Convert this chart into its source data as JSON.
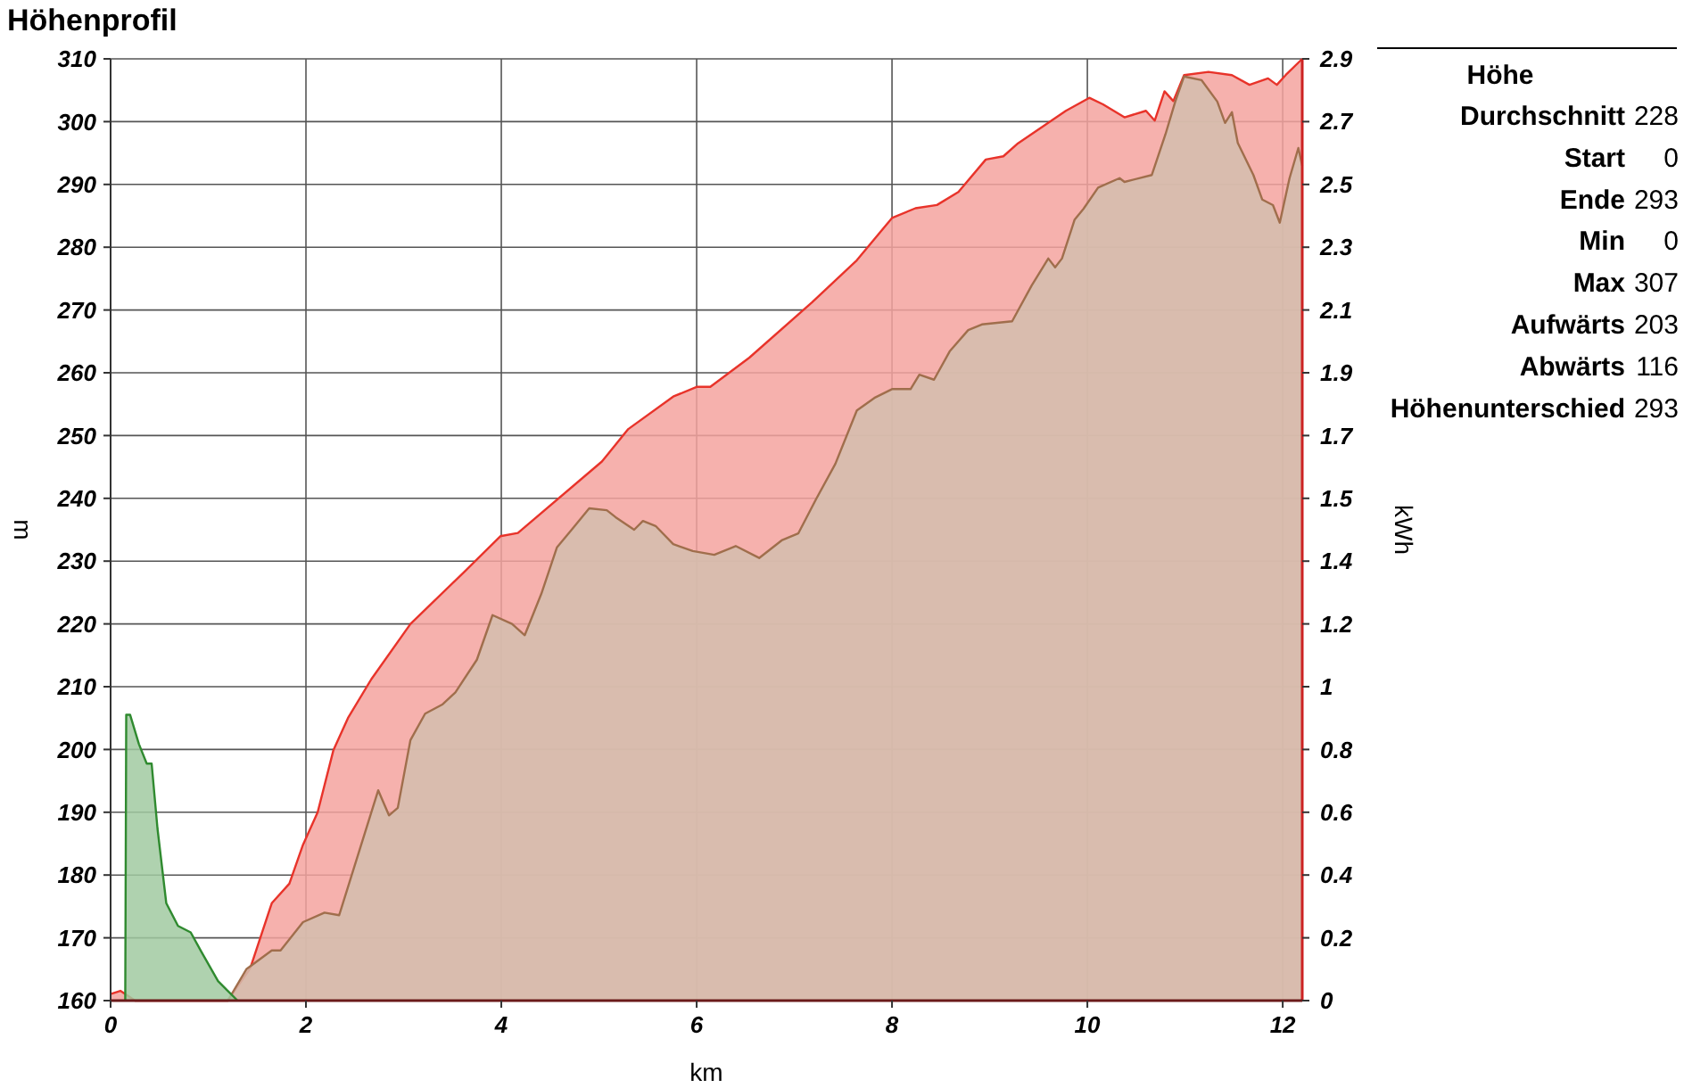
{
  "chart_data": {
    "type": "area",
    "title": "Höhenprofil",
    "xlabel": "km",
    "ylabel": "m",
    "y2label": "kWh",
    "xlim": [
      0,
      12.2
    ],
    "xticks": [
      0,
      2,
      4,
      6,
      8,
      10,
      12
    ],
    "ylim": [
      160,
      310
    ],
    "yticks": [
      160,
      170,
      180,
      190,
      200,
      210,
      220,
      230,
      240,
      250,
      260,
      270,
      280,
      290,
      300,
      310
    ],
    "y2lim": [
      0,
      2.9
    ],
    "y2ticks": [
      0,
      {
        "value": 0.1933,
        "label": "0.2"
      },
      {
        "value": 0.3867,
        "label": "0.4"
      },
      {
        "value": 0.58,
        "label": "0.6"
      },
      {
        "value": 0.7733,
        "label": "0.8"
      },
      {
        "value": 0.9667,
        "label": "1"
      },
      {
        "value": 1.16,
        "label": "1.2"
      },
      {
        "value": 1.3533,
        "label": "1.4"
      },
      {
        "value": 1.5467,
        "label": "1.5"
      },
      {
        "value": 1.74,
        "label": "1.7"
      },
      {
        "value": 1.9333,
        "label": "1.9"
      },
      {
        "value": 2.1267,
        "label": "2.1"
      },
      {
        "value": 2.32,
        "label": "2.3"
      },
      {
        "value": 2.5133,
        "label": "2.5"
      },
      {
        "value": 2.7067,
        "label": "2.7"
      },
      2.9
    ],
    "grid": true,
    "series": [
      {
        "color": "#e8332a",
        "axis": "y2",
        "x": [
          0,
          0.1,
          0.2,
          0.25,
          1.2,
          1.43,
          1.65,
          1.83,
          1.97,
          2.12,
          2.28,
          2.43,
          2.67,
          3.07,
          3.62,
          3.99,
          4.17,
          5.03,
          5.3,
          5.76,
          6.0,
          6.14,
          6.54,
          7.18,
          7.64,
          8.0,
          8.24,
          8.46,
          8.68,
          8.96,
          9.14,
          9.29,
          9.78,
          10.02,
          10.16,
          10.38,
          10.6,
          10.69,
          10.79,
          10.88,
          10.99,
          11.24,
          11.48,
          11.66,
          11.85,
          11.94,
          12.03,
          12.2
        ],
        "values": [
          0.02,
          0.03,
          0.01,
          0,
          0,
          0.1,
          0.3,
          0.36,
          0.48,
          0.58,
          0.77,
          0.87,
          0.99,
          1.16,
          1.32,
          1.43,
          1.44,
          1.66,
          1.76,
          1.86,
          1.89,
          1.89,
          1.98,
          2.15,
          2.28,
          2.41,
          2.44,
          2.45,
          2.49,
          2.59,
          2.6,
          2.64,
          2.74,
          2.78,
          2.76,
          2.72,
          2.74,
          2.71,
          2.8,
          2.77,
          2.85,
          2.86,
          2.85,
          2.82,
          2.84,
          2.82,
          2.85,
          2.9
        ]
      },
      {
        "color": "#a06e4c",
        "x": [
          1.2,
          1.39,
          1.65,
          1.74,
          1.97,
          2.19,
          2.34,
          2.74,
          2.85,
          2.94,
          3.07,
          3.22,
          3.4,
          3.53,
          3.75,
          3.91,
          4.11,
          4.24,
          4.41,
          4.57,
          4.72,
          4.9,
          5.08,
          5.17,
          5.36,
          5.45,
          5.58,
          5.76,
          5.96,
          6.18,
          6.4,
          6.64,
          6.87,
          7.04,
          7.22,
          7.42,
          7.64,
          7.82,
          8.0,
          8.19,
          8.28,
          8.43,
          8.59,
          8.78,
          8.92,
          9.23,
          9.43,
          9.6,
          9.67,
          9.74,
          9.87,
          9.96,
          10.11,
          10.33,
          10.38,
          10.66,
          10.8,
          10.9,
          10.99,
          11.17,
          11.33,
          11.41,
          11.48,
          11.54,
          11.7,
          11.79,
          11.9,
          11.97,
          12.07,
          12.16,
          12.2
        ],
        "values": [
          160,
          165,
          168,
          168,
          172.5,
          174,
          173.6,
          193.5,
          189.5,
          190.7,
          201.5,
          205.7,
          207.2,
          209.1,
          214.3,
          221.4,
          220,
          218.2,
          224.8,
          232.2,
          235,
          238.4,
          238.1,
          237,
          235,
          236.4,
          235.6,
          232.7,
          231.6,
          231,
          232.4,
          230.5,
          233.3,
          234.4,
          239.8,
          245.5,
          254,
          256,
          257.4,
          257.4,
          259.7,
          258.9,
          263.4,
          266.8,
          267.7,
          268.2,
          273.9,
          278.2,
          276.8,
          278.2,
          284.4,
          286.1,
          289.5,
          291,
          290.4,
          291.5,
          298,
          303.2,
          307.2,
          306.6,
          303.2,
          299.8,
          301.5,
          296.6,
          291.5,
          287.6,
          286.7,
          283.9,
          291,
          295.8,
          293
        ]
      },
      {
        "color": "#2f8a2f",
        "axis": "y2",
        "x": [
          0.15,
          0.16,
          0.2,
          0.29,
          0.37,
          0.42,
          0.48,
          0.57,
          0.69,
          0.82,
          0.93,
          1.1,
          1.2,
          1.3
        ],
        "values": [
          0,
          0.88,
          0.88,
          0.79,
          0.73,
          0.73,
          0.53,
          0.3,
          0.23,
          0.21,
          0.15,
          0.06,
          0.03,
          0
        ]
      }
    ],
    "annotations": [
      "Höhe",
      "Durchschnitt",
      "228",
      "Start",
      "0",
      "Ende",
      "293",
      "Min",
      "0",
      "Max",
      "307",
      "Aufwärts",
      "203",
      "Abwärts",
      "116",
      "Höhenunterschied",
      "293"
    ]
  }
}
